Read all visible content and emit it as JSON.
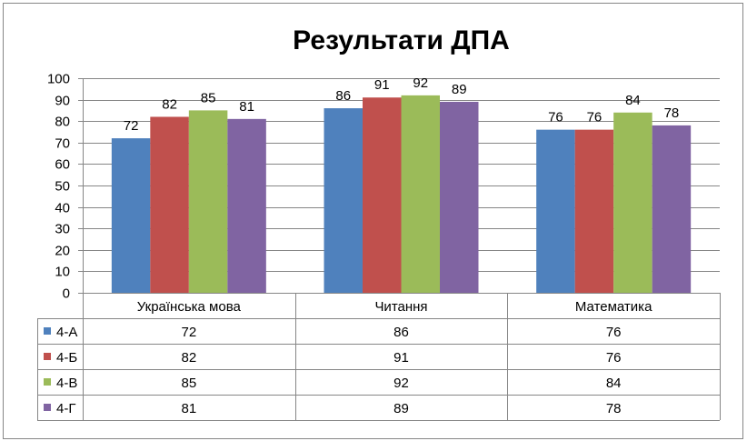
{
  "chart_data": {
    "type": "bar",
    "title": "Результати ДПА",
    "categories": [
      "Українська мова",
      "Читання",
      "Математика"
    ],
    "series": [
      {
        "name": "4-А",
        "color": "#4F81BD",
        "values": [
          72,
          86,
          76
        ]
      },
      {
        "name": "4-Б",
        "color": "#C0504D",
        "values": [
          82,
          91,
          76
        ]
      },
      {
        "name": "4-В",
        "color": "#9BBB59",
        "values": [
          85,
          92,
          84
        ]
      },
      {
        "name": "4-Г",
        "color": "#8064A2",
        "values": [
          81,
          89,
          78
        ]
      }
    ],
    "ylim": [
      0,
      100
    ],
    "yticks": [
      0,
      10,
      20,
      30,
      40,
      50,
      60,
      70,
      80,
      90,
      100
    ],
    "grid": true,
    "data_labels": true,
    "legend": "data-table"
  }
}
